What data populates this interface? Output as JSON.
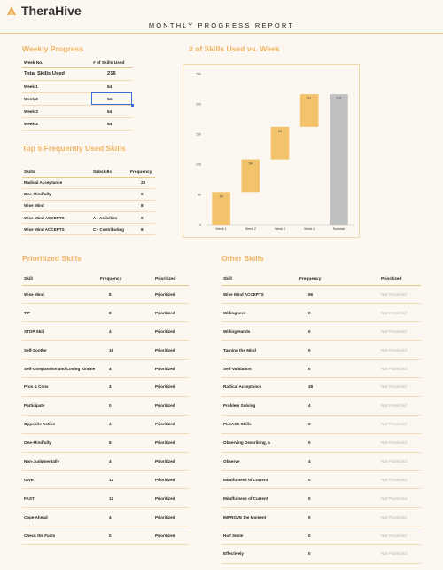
{
  "app": {
    "name": "TheraHive",
    "report_title": "MONTHLY PROGRESS REPORT"
  },
  "weekly": {
    "title": "Weekly Progress",
    "headers": [
      "Week No.",
      "# of Skills Used"
    ],
    "total_label": "Total Skills Used",
    "total_value": "216",
    "rows": [
      {
        "week": "Week 1",
        "value": "54"
      },
      {
        "week": "Week 2",
        "value": "54"
      },
      {
        "week": "Week 3",
        "value": "54"
      },
      {
        "week": "Week 4",
        "value": "54"
      }
    ]
  },
  "top5": {
    "title": "Top 5 Frequently Used Skills",
    "headers": [
      "Skills",
      "Subskills",
      "Frequency"
    ],
    "rows": [
      {
        "skill": "Radical Acceptance",
        "sub": "",
        "freq": "28"
      },
      {
        "skill": "One-Mindfully",
        "sub": "",
        "freq": "8"
      },
      {
        "skill": "Wise Mind",
        "sub": "",
        "freq": "8"
      },
      {
        "skill": "Wise Mind ACCEPTS",
        "sub": "A - Activities",
        "freq": "8"
      },
      {
        "skill": "Wise Mind ACCEPTS",
        "sub": "C - Contributing",
        "freq": "8"
      }
    ]
  },
  "prioritized": {
    "title": "Prioritized Skills",
    "headers": [
      "Skill",
      "Frequency",
      "Prioritized"
    ],
    "rows": [
      {
        "skill": "Wise Mind",
        "freq": "8",
        "status": "Prioritized"
      },
      {
        "skill": "TIP",
        "freq": "8",
        "status": "Prioritized"
      },
      {
        "skill": "STOP Skill",
        "freq": "4",
        "status": "Prioritized"
      },
      {
        "skill": "Self-Soothe",
        "freq": "16",
        "status": "Prioritized"
      },
      {
        "skill": "Self-Compassion and Loving Kindne",
        "freq": "4",
        "status": "Prioritized"
      },
      {
        "skill": "Pros & Cons",
        "freq": "4",
        "status": "Prioritized"
      },
      {
        "skill": "Participate",
        "freq": "0",
        "status": "Prioritized"
      },
      {
        "skill": "Opposite Action",
        "freq": "4",
        "status": "Prioritized"
      },
      {
        "skill": "One-Mindfully",
        "freq": "8",
        "status": "Prioritized"
      },
      {
        "skill": "Non-Judgmentally",
        "freq": "4",
        "status": "Prioritized"
      },
      {
        "skill": "GIVE",
        "freq": "12",
        "status": "Prioritized"
      },
      {
        "skill": "FAST",
        "freq": "12",
        "status": "Prioritized"
      },
      {
        "skill": "Cope Ahead",
        "freq": "4",
        "status": "Prioritized"
      },
      {
        "skill": "Check the Facts",
        "freq": "0",
        "status": "Prioritized"
      }
    ]
  },
  "other": {
    "title": "Other Skills",
    "headers": [
      "Skill",
      "Frequency",
      "Prioritized"
    ],
    "rows": [
      {
        "skill": "Wise Mind ACCEPTS",
        "freq": "56",
        "status": "Not Prioritized"
      },
      {
        "skill": "Willingness",
        "freq": "0",
        "status": "Not Prioritized"
      },
      {
        "skill": "Willing Hands",
        "freq": "0",
        "status": "Not Prioritized"
      },
      {
        "skill": "Turning the Mind",
        "freq": "0",
        "status": "Not Prioritized"
      },
      {
        "skill": "Self-Validation",
        "freq": "0",
        "status": "Not Prioritized"
      },
      {
        "skill": "Radical Acceptance",
        "freq": "28",
        "status": "Not Prioritized"
      },
      {
        "skill": "Problem Solving",
        "freq": "4",
        "status": "Not Prioritized"
      },
      {
        "skill": "PLEASE Skills",
        "freq": "8",
        "status": "Not Prioritized"
      },
      {
        "skill": "Observing Describing, a",
        "freq": "0",
        "status": "Not Prioritized"
      },
      {
        "skill": "Observe",
        "freq": "4",
        "status": "Not Prioritized"
      },
      {
        "skill": "Mindfulness of Current",
        "freq": "0",
        "status": "Not Prioritized"
      },
      {
        "skill": "Mindfulness of Current",
        "freq": "0",
        "status": "Not Prioritized"
      },
      {
        "skill": "IMPROVE the Moment",
        "freq": "0",
        "status": "Not Prioritized"
      },
      {
        "skill": "Half Smile",
        "freq": "0",
        "status": "Not Prioritized"
      },
      {
        "skill": "Effectively",
        "freq": "0",
        "status": "Not Prioritized"
      }
    ]
  },
  "chart_data": {
    "type": "bar",
    "subtype": "waterfall",
    "title": "# of Skills Used vs. Week",
    "categories": [
      "Week 1",
      "Week 2",
      "Week 3",
      "Week 4",
      "Subtotal"
    ],
    "values": [
      54,
      54,
      54,
      54,
      216
    ],
    "ylim": [
      0,
      250
    ],
    "yticks": [
      0,
      50,
      100,
      150,
      200,
      250
    ],
    "grid": false,
    "colors": {
      "increase": "#f2c36b",
      "total": "#c0c0c0"
    }
  }
}
